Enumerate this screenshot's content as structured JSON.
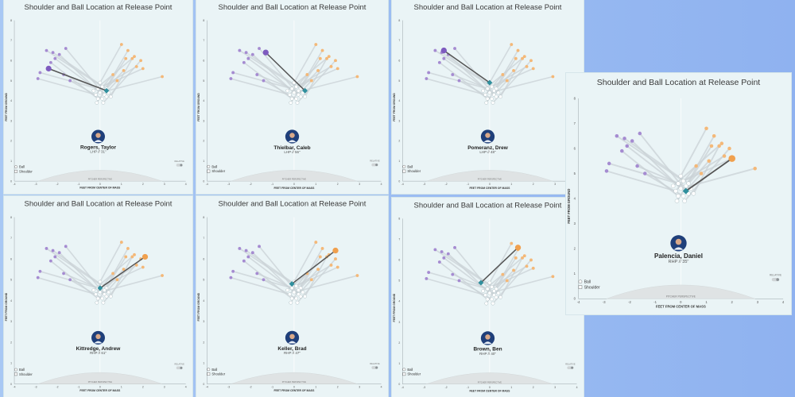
{
  "colors": {
    "panel_bg": "#eaf4f6",
    "ball_lhp": "#a58bd1",
    "ball_rhp": "#f4b878",
    "ball_hl_lhp": "#7e5bbf",
    "ball_hl_rhp": "#f0a04e",
    "arm_bg": "#c9d2d6",
    "arm_hl": "#555555",
    "shoulder": "#ffffff",
    "shoulder_hl": "#2f8f9d",
    "avatar": "#1f3f7a"
  },
  "legend": {
    "ball": "Ball",
    "shoulder": "Shoulder"
  },
  "toggle_label": "RELATIVE",
  "perspective_label": "PITCHER PERSPECTIVE",
  "xlabel": "FEET FROM CENTER OF MASS",
  "ylabel": "FEET FROM GROUND",
  "panels": [
    {
      "title": "Shoulder and Ball Location at Release Point",
      "name": "Rogers, Taylor",
      "role": "LHP // 31\""
    },
    {
      "title": "Shoulder and Ball Location at Release Point",
      "name": "Thielbar, Caleb",
      "role": "LHP // 56\""
    },
    {
      "title": "Shoulder and Ball Location at Release Point",
      "name": "Pomeranz, Drew",
      "role": "LHP // 48\""
    },
    {
      "title": "Shoulder and Ball Location at Release Point",
      "name": "Kittredge, Andrew",
      "role": "RHP // 61\""
    },
    {
      "title": "Shoulder and Ball Location at Release Point",
      "name": "Keller, Brad",
      "role": "RHP // 47\""
    },
    {
      "title": "Shoulder and Ball Location at Release Point",
      "name": "Brown, Ben",
      "role": "RHP // 40\""
    },
    {
      "title": "Shoulder and Ball Location at Release Point",
      "name": "Palencia, Daniel",
      "role": "RHP // 35\""
    }
  ],
  "chart_data": {
    "type": "scatter",
    "title": "Shoulder and Ball Location at Release Point",
    "xlabel": "FEET FROM CENTER OF MASS",
    "ylabel": "FEET FROM GROUND",
    "xlim": [
      -4,
      4
    ],
    "ylim": [
      0,
      8
    ],
    "x_ticks": [
      -4,
      -3,
      -2,
      -1,
      0,
      1,
      2,
      3,
      4
    ],
    "y_ticks": [
      0,
      1,
      2,
      3,
      4,
      5,
      6,
      7,
      8
    ],
    "series": [
      {
        "name": "Ball",
        "points": [
          [
            -2.8,
            5.4
          ],
          [
            -2.5,
            6.5
          ],
          [
            -2.2,
            6.4
          ],
          [
            -1.9,
            6.3
          ],
          [
            -1.6,
            6.6
          ],
          [
            -2.9,
            5.1
          ],
          [
            -1.7,
            5.3
          ],
          [
            -1.4,
            5.0
          ],
          [
            -2.3,
            5.9
          ],
          [
            -2.1,
            6.1
          ],
          [
            1.0,
            6.8
          ],
          [
            1.3,
            6.5
          ],
          [
            1.6,
            6.2
          ],
          [
            1.5,
            6.1
          ],
          [
            1.9,
            6.0
          ],
          [
            1.2,
            6.1
          ],
          [
            2.0,
            5.6
          ],
          [
            1.7,
            5.7
          ],
          [
            1.1,
            5.5
          ],
          [
            2.9,
            5.2
          ],
          [
            0.8,
            5.0
          ],
          [
            0.6,
            5.3
          ]
        ]
      },
      {
        "name": "Shoulder",
        "points": [
          [
            -0.1,
            4.6
          ],
          [
            0.1,
            4.7
          ],
          [
            0.3,
            4.6
          ],
          [
            0.0,
            4.4
          ],
          [
            0.2,
            4.3
          ],
          [
            -0.2,
            4.3
          ],
          [
            0.4,
            4.4
          ],
          [
            0.1,
            4.1
          ],
          [
            -0.1,
            4.1
          ],
          [
            0.3,
            4.2
          ],
          [
            0.0,
            4.9
          ],
          [
            0.2,
            4.5
          ],
          [
            -0.3,
            4.5
          ],
          [
            0.5,
            4.2
          ],
          [
            0.15,
            3.9
          ],
          [
            -0.15,
            3.9
          ]
        ]
      }
    ],
    "highlights": [
      {
        "player": "Rogers, Taylor",
        "ball": [
          -2.4,
          5.6
        ],
        "shoulder": [
          0.3,
          4.5
        ]
      },
      {
        "player": "Thielbar, Caleb",
        "ball": [
          -1.3,
          6.4
        ],
        "shoulder": [
          0.5,
          4.5
        ]
      },
      {
        "player": "Pomeranz, Drew",
        "ball": [
          -2.1,
          6.5
        ],
        "shoulder": [
          0.0,
          4.9
        ]
      },
      {
        "player": "Kittredge, Andrew",
        "ball": [
          2.1,
          6.1
        ],
        "shoulder": [
          0.0,
          4.6
        ]
      },
      {
        "player": "Keller, Brad",
        "ball": [
          1.9,
          6.4
        ],
        "shoulder": [
          -0.1,
          4.8
        ]
      },
      {
        "player": "Brown, Ben",
        "ball": [
          1.3,
          6.6
        ],
        "shoulder": [
          -0.4,
          4.9
        ]
      },
      {
        "player": "Palencia, Daniel",
        "ball": [
          2.0,
          5.6
        ],
        "shoulder": [
          0.2,
          4.3
        ]
      }
    ],
    "legend_position": "bottom-left",
    "grid": false
  }
}
